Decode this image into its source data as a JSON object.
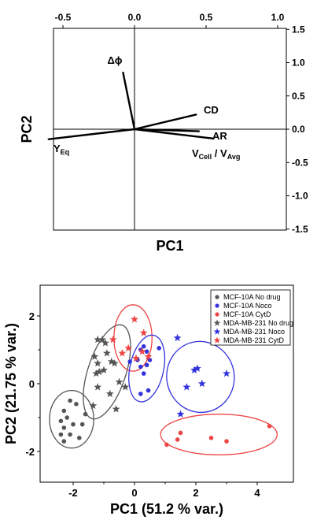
{
  "chart_data": [
    {
      "type": "biplot",
      "xlabel": "PC1",
      "ylabel": "PC2",
      "x_top_ticks": [
        "-0.5",
        "0.0",
        "0.5",
        "1.0"
      ],
      "x_top_values": [
        -0.5,
        0,
        0.5,
        1.0
      ],
      "y_right_ticks": [
        "1.5",
        "1.0",
        "0.5",
        "0.0",
        "-0.5",
        "-1.0",
        "-1.5"
      ],
      "y_right_values": [
        1.5,
        1.0,
        0.5,
        0.0,
        -0.5,
        -1.0,
        -1.5
      ],
      "xlim": [
        -0.66,
        1.0
      ],
      "ylim": [
        -1.5,
        1.5
      ],
      "vectors": [
        {
          "name": "Δϕ",
          "x": -0.08,
          "y": 0.85
        },
        {
          "name": "CD",
          "x": 0.43,
          "y": 0.22
        },
        {
          "name": "AR",
          "x": 0.45,
          "y": -0.03
        },
        {
          "name": "V_Cell / V_Avg",
          "x": 0.55,
          "y": -0.14
        },
        {
          "name": "Y_Eq",
          "x": -0.6,
          "y": -0.15
        }
      ],
      "vector_labels": {
        "dphi": "Δϕ",
        "cd": "CD",
        "ar": "AR",
        "vcell_main": "V",
        "vcell_sub": "Cell",
        "vcell_sep": " / V",
        "vcell_sub2": "Avg",
        "yeq_main": "Y",
        "yeq_sub": "Eq"
      }
    },
    {
      "type": "scatter",
      "xlabel": "PC1 (51.2 % var.)",
      "ylabel": "PC2 (21.75 % var.)",
      "xlim": [
        -2.6,
        4.7
      ],
      "ylim": [
        -3.1,
        3.1
      ],
      "x_ticks": [
        "-2",
        "0",
        "2",
        "4"
      ],
      "x_tick_values": [
        -2,
        0,
        2,
        4
      ],
      "y_ticks": [
        "2",
        "0",
        "-2"
      ],
      "y_tick_values": [
        2,
        0,
        -2
      ],
      "series": [
        {
          "name": "MCF-10A No drug",
          "color": "#555555",
          "marker": "circle",
          "points": [
            [
              -2.3,
              -0.8
            ],
            [
              -2.1,
              -0.5
            ],
            [
              -1.9,
              -0.6
            ],
            [
              -2.2,
              -1.0
            ],
            [
              -2.4,
              -1.1
            ],
            [
              -1.7,
              -1.2
            ],
            [
              -2.0,
              -1.2
            ],
            [
              -2.3,
              -1.3
            ],
            [
              -2.4,
              -1.5
            ],
            [
              -2.1,
              -1.5
            ],
            [
              -1.8,
              -1.6
            ],
            [
              -2.3,
              -1.7
            ],
            [
              -1.6,
              -0.9
            ]
          ]
        },
        {
          "name": "MCF-10A Noco",
          "color": "#3333dd",
          "marker": "circle",
          "points": [
            [
              0.2,
              1.0
            ],
            [
              0.3,
              1.1
            ],
            [
              0.4,
              0.95
            ],
            [
              0.5,
              0.7
            ],
            [
              0.8,
              1.05
            ],
            [
              0.1,
              0.7
            ],
            [
              0.4,
              0.55
            ],
            [
              0.2,
              0.5
            ],
            [
              -0.15,
              0.65
            ],
            [
              0.3,
              0.3
            ],
            [
              0.45,
              -0.2
            ],
            [
              0.2,
              -0.3
            ]
          ]
        },
        {
          "name": "MCF-10A CytD",
          "color": "#ee4444",
          "marker": "circle",
          "points": [
            [
              1.05,
              -1.8
            ],
            [
              1.4,
              -1.65
            ],
            [
              1.5,
              -1.45
            ],
            [
              2.5,
              -1.6
            ],
            [
              3.0,
              -1.7
            ],
            [
              4.4,
              -1.25
            ]
          ]
        },
        {
          "name": "MDA-MB-231 No drug",
          "color": "#555555",
          "marker": "star",
          "points": [
            [
              -1.2,
              1.3
            ],
            [
              -1.05,
              1.3
            ],
            [
              -0.95,
              1.2
            ],
            [
              -1.3,
              0.8
            ],
            [
              -1.2,
              0.6
            ],
            [
              -0.9,
              0.9
            ],
            [
              -0.75,
              0.65
            ],
            [
              -0.65,
              0.6
            ],
            [
              -1.25,
              0.3
            ],
            [
              -1.15,
              0.35
            ],
            [
              -1.0,
              0.4
            ],
            [
              -1.2,
              -0.1
            ],
            [
              -0.8,
              -0.3
            ],
            [
              -0.3,
              -0.1
            ],
            [
              -1.35,
              -0.65
            ],
            [
              -0.6,
              -0.75
            ],
            [
              -0.5,
              0.05
            ]
          ]
        },
        {
          "name": "MDA-MB-231 Noco",
          "color": "#3333dd",
          "marker": "star",
          "points": [
            [
              1.4,
              1.35
            ],
            [
              1.95,
              0.4
            ],
            [
              2.05,
              0.45
            ],
            [
              3.0,
              0.3
            ],
            [
              2.2,
              0.0
            ],
            [
              1.7,
              -0.1
            ],
            [
              1.5,
              -0.9
            ]
          ]
        },
        {
          "name": "MDA-MB-231 CytD",
          "color": "#ee4444",
          "marker": "star",
          "points": [
            [
              0.0,
              1.9
            ],
            [
              -0.7,
              1.3
            ],
            [
              -0.2,
              1.05
            ],
            [
              0.3,
              1.5
            ],
            [
              0.25,
              0.95
            ],
            [
              0.45,
              0.8
            ],
            [
              -0.4,
              0.9
            ],
            [
              0.05,
              0.75
            ]
          ]
        }
      ],
      "ellipses": [
        {
          "cx": -2.05,
          "cy": -1.05,
          "rx": 0.72,
          "ry": 0.85,
          "angle": 0,
          "color": "#555555"
        },
        {
          "cx": -0.9,
          "cy": 0.35,
          "rx": 0.62,
          "ry": 1.45,
          "angle": 18,
          "color": "#555555"
        },
        {
          "cx": -0.05,
          "cy": 1.35,
          "rx": 0.62,
          "ry": 0.98,
          "angle": 0,
          "color": "#ee4444"
        },
        {
          "cx": 0.4,
          "cy": 0.45,
          "rx": 0.55,
          "ry": 1.0,
          "angle": 12,
          "color": "#3333dd"
        },
        {
          "cx": 2.15,
          "cy": 0.2,
          "rx": 1.1,
          "ry": 1.05,
          "angle": -12,
          "color": "#3333dd"
        },
        {
          "cx": 2.75,
          "cy": -1.5,
          "rx": 1.9,
          "ry": 0.6,
          "angle": 0,
          "color": "#ee4444"
        }
      ],
      "legend_position": "top-right"
    }
  ]
}
